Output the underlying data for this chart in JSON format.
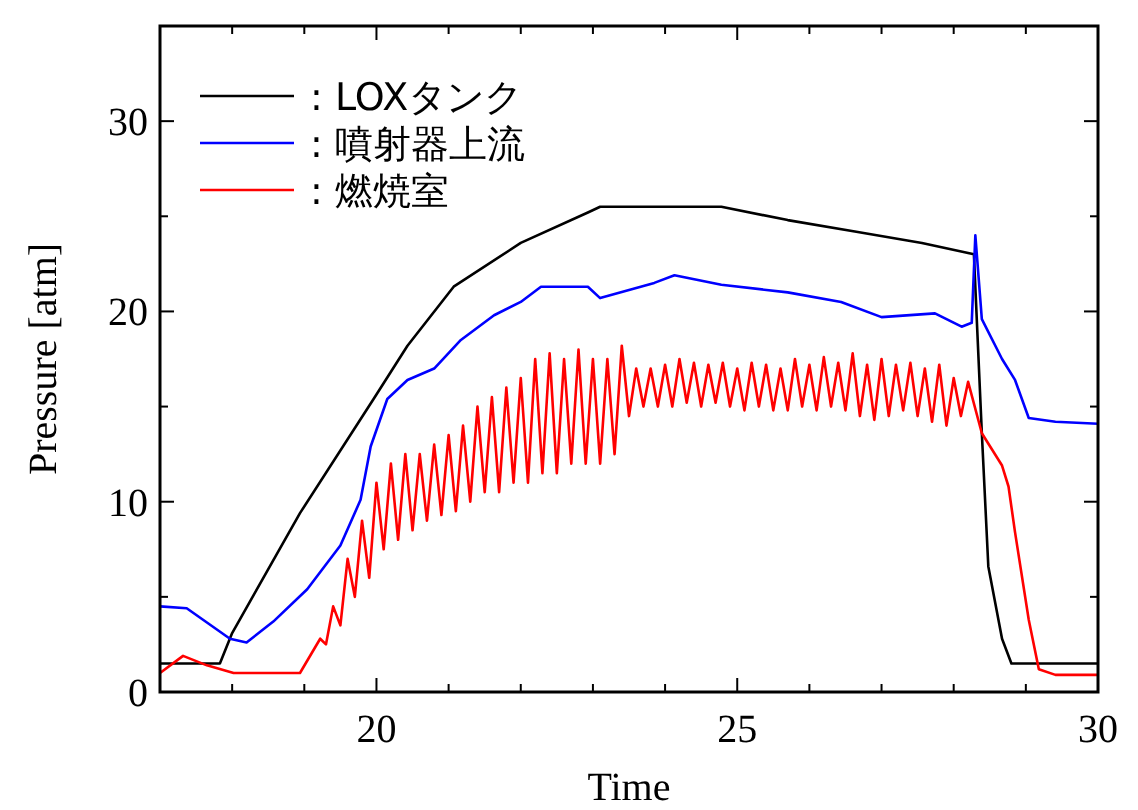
{
  "chart_data": {
    "type": "line",
    "xlabel": "Time",
    "ylabel": "Pressure [atm]",
    "xlim": [
      17,
      30
    ],
    "ylim": [
      0,
      35
    ],
    "xticks": [
      {
        "value": 18,
        "label": null
      },
      {
        "value": 19,
        "label": null
      },
      20,
      {
        "value": 21,
        "label": null
      },
      {
        "value": 22,
        "label": null
      },
      {
        "value": 23,
        "label": null
      },
      {
        "value": 24,
        "label": null
      },
      25,
      {
        "value": 26,
        "label": null
      },
      {
        "value": 27,
        "label": null
      },
      {
        "value": 28,
        "label": null
      },
      {
        "value": 29,
        "label": null
      },
      30
    ],
    "yticks": [
      0,
      {
        "value": 5,
        "label": null
      },
      10,
      {
        "value": 15,
        "label": null
      },
      20,
      {
        "value": 25,
        "label": null
      },
      30
    ],
    "legend": "top left",
    "grid": false,
    "marker": "none",
    "line_style": "solid",
    "series": [
      {
        "name": ": LOXタンク",
        "color": "#000000",
        "x": [
          17,
          17.83,
          18.0,
          18.94,
          19.96,
          20.43,
          21.07,
          22.0,
          22.93,
          23.1,
          24.78,
          25.7,
          26.63,
          27.56,
          28.28,
          28.39,
          28.48,
          28.67,
          28.8,
          30
        ],
        "values": [
          1.5,
          1.5,
          3.1,
          9.4,
          15.4,
          18.2,
          21.3,
          23.6,
          25.2,
          25.5,
          25.5,
          24.8,
          24.2,
          23.6,
          23.0,
          13.6,
          6.6,
          2.8,
          1.5,
          1.5
        ]
      },
      {
        "name": ": 噴射器上流",
        "color": "#0000ff",
        "x": [
          17,
          17.37,
          17.97,
          18.2,
          18.57,
          19.04,
          19.5,
          19.78,
          19.92,
          20.15,
          20.43,
          20.8,
          21.17,
          21.63,
          22.0,
          22.28,
          22.93,
          23.1,
          23.85,
          24.13,
          24.78,
          25.7,
          26.44,
          27.0,
          27.74,
          28.11,
          28.25,
          28.3,
          28.39,
          28.67,
          28.85,
          29.04,
          29.41,
          30
        ],
        "values": [
          4.5,
          4.4,
          2.8,
          2.6,
          3.7,
          5.4,
          7.7,
          10.1,
          12.9,
          15.4,
          16.4,
          17.0,
          18.5,
          19.8,
          20.5,
          21.3,
          21.3,
          20.7,
          21.5,
          21.9,
          21.4,
          21.0,
          20.5,
          19.7,
          19.9,
          19.2,
          19.4,
          24.0,
          19.6,
          17.5,
          16.4,
          14.4,
          14.2,
          14.1
        ]
      },
      {
        "name": ": 燃焼室",
        "color": "#ff0000",
        "x": [
          17,
          17.32,
          17.65,
          18.02,
          18.94,
          19.22,
          19.3,
          19.4,
          19.5,
          19.6,
          19.7,
          19.8,
          19.9,
          20.0,
          20.1,
          20.2,
          20.3,
          20.4,
          20.5,
          20.6,
          20.7,
          20.8,
          20.9,
          21.0,
          21.1,
          21.2,
          21.3,
          21.4,
          21.5,
          21.6,
          21.7,
          21.8,
          21.9,
          22.0,
          22.1,
          22.2,
          22.3,
          22.4,
          22.5,
          22.6,
          22.7,
          22.8,
          22.9,
          23.0,
          23.1,
          23.2,
          23.3,
          23.4,
          23.5,
          23.6,
          23.7,
          23.8,
          23.9,
          24.0,
          24.1,
          24.2,
          24.3,
          24.4,
          24.5,
          24.6,
          24.7,
          24.8,
          24.9,
          25.0,
          25.1,
          25.2,
          25.3,
          25.4,
          25.5,
          25.6,
          25.7,
          25.8,
          25.9,
          26.0,
          26.1,
          26.2,
          26.3,
          26.4,
          26.5,
          26.6,
          26.7,
          26.8,
          26.9,
          27.0,
          27.1,
          27.2,
          27.3,
          27.4,
          27.5,
          27.6,
          27.7,
          27.8,
          27.9,
          28.0,
          28.1,
          28.2,
          28.39,
          28.67,
          28.76,
          28.85,
          29.04,
          29.18,
          29.41,
          30
        ],
        "values": [
          1.0,
          1.9,
          1.4,
          1.0,
          1.0,
          2.8,
          2.5,
          4.5,
          3.5,
          7,
          5,
          9,
          6,
          11,
          7.5,
          12,
          8,
          12.5,
          8.5,
          12.5,
          9,
          13,
          9.3,
          13.5,
          9.5,
          14,
          10,
          15,
          10.5,
          15.5,
          10.5,
          16,
          11,
          16.5,
          11,
          17.5,
          11.5,
          17.8,
          11.5,
          17.5,
          12,
          18,
          12,
          17.5,
          12,
          17.5,
          12.5,
          18.2,
          14.5,
          17,
          15,
          17,
          15,
          17.2,
          15,
          17.5,
          15.2,
          17.3,
          15,
          17.2,
          15.2,
          17.3,
          15,
          17,
          14.8,
          17.3,
          15,
          17.2,
          14.8,
          17,
          14.8,
          17.5,
          15,
          17.2,
          14.8,
          17.6,
          15,
          17.3,
          14.8,
          17.8,
          14.5,
          17.2,
          14.3,
          17.5,
          14.5,
          17.2,
          14.8,
          17.3,
          14.5,
          17,
          14.2,
          17.2,
          14,
          16.5,
          14.5,
          16.3,
          13.6,
          11.9,
          10.8,
          8.4,
          3.8,
          1.2,
          0.9,
          0.9
        ]
      }
    ]
  }
}
